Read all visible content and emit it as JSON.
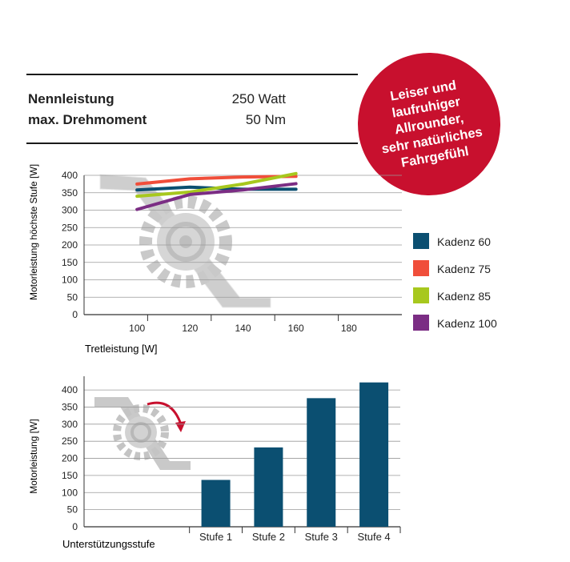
{
  "specs": [
    {
      "label": "Nennleistung",
      "value": "250 Watt"
    },
    {
      "label": "max. Drehmoment",
      "value": "50 Nm"
    }
  ],
  "badge": {
    "lines": [
      "Leiser und",
      "laufruhiger",
      "Allrounder,",
      "sehr natürliches",
      "Fahrgefühl"
    ],
    "color": "#c8102e"
  },
  "chart_data": [
    {
      "type": "line",
      "xlabel": "Tretleistung [W]",
      "ylabel": "Motorleistung höchste Stufe [W]",
      "x_ticks": [
        100,
        120,
        140,
        160,
        180
      ],
      "y_ticks": [
        0,
        50,
        100,
        150,
        200,
        250,
        300,
        350,
        400
      ],
      "xlim": [
        80,
        200
      ],
      "ylim": [
        0,
        400
      ],
      "grid": true,
      "legend_position": "right",
      "series": [
        {
          "name": "Kadenz 60",
          "color": "#0b4f71",
          "x": [
            100,
            120,
            140,
            160
          ],
          "y": [
            358,
            366,
            360,
            360
          ]
        },
        {
          "name": "Kadenz 75",
          "color": "#f04e3a",
          "x": [
            100,
            120,
            140,
            160
          ],
          "y": [
            375,
            390,
            395,
            397
          ]
        },
        {
          "name": "Kadenz 85",
          "color": "#a7c81e",
          "x": [
            100,
            120,
            140,
            160
          ],
          "y": [
            340,
            352,
            375,
            405
          ]
        },
        {
          "name": "Kadenz 100",
          "color": "#7b2d84",
          "x": [
            100,
            120,
            140,
            160
          ],
          "y": [
            302,
            345,
            358,
            376
          ]
        }
      ]
    },
    {
      "type": "bar",
      "xlabel": "Unterstützungsstufe",
      "ylabel": "Motorleistung [W]",
      "categories": [
        "Stufe 1",
        "Stufe 2",
        "Stufe 3",
        "Stufe 4"
      ],
      "values": [
        137,
        232,
        376,
        422
      ],
      "y_ticks": [
        0,
        50,
        100,
        150,
        200,
        250,
        300,
        350,
        400
      ],
      "ylim": [
        0,
        440
      ],
      "grid": true,
      "color": "#0b4f71"
    }
  ]
}
